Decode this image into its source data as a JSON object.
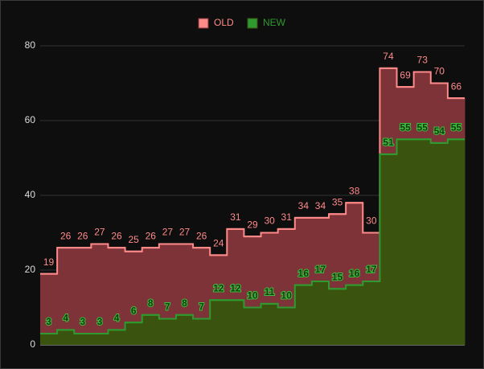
{
  "chart_data": {
    "type": "step-area",
    "categories": [
      null,
      null,
      null,
      null,
      null,
      null,
      null,
      null,
      null,
      null,
      null,
      null,
      null,
      null,
      null,
      null,
      null,
      null,
      null,
      null,
      null,
      null,
      null,
      null,
      null
    ],
    "series": [
      {
        "name": "OLD",
        "color": "#ff8a8a",
        "fill": "#7d3338",
        "values": [
          19,
          26,
          26,
          27,
          26,
          25,
          26,
          27,
          27,
          26,
          24,
          31,
          29,
          30,
          31,
          34,
          34,
          35,
          38,
          30,
          74,
          69,
          73,
          70,
          66
        ]
      },
      {
        "name": "NEW",
        "color": "#2f9a2f",
        "fill": "#3a5410",
        "values": [
          3,
          4,
          3,
          3,
          4,
          6,
          8,
          7,
          8,
          7,
          12,
          12,
          10,
          11,
          10,
          16,
          17,
          15,
          16,
          17,
          51,
          55,
          55,
          54,
          55
        ]
      }
    ],
    "ylim": [
      0,
      80
    ],
    "yticks": [
      0,
      20,
      40,
      60,
      80
    ],
    "grid": true,
    "legend": "top"
  }
}
